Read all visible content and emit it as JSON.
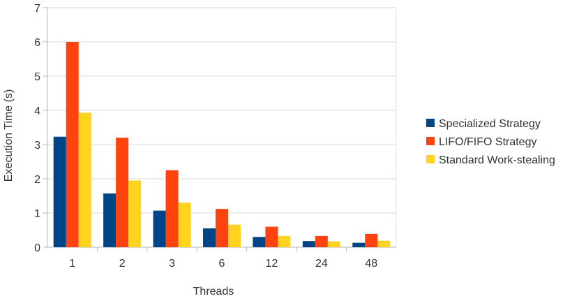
{
  "chart_data": {
    "type": "bar",
    "title": "",
    "xlabel": "Threads",
    "ylabel": "Execution Time (s)",
    "ylim": [
      0,
      7
    ],
    "yticks": [
      0,
      1,
      2,
      3,
      4,
      5,
      6,
      7
    ],
    "grid": true,
    "legend_position": "right",
    "categories": [
      "1",
      "2",
      "3",
      "6",
      "12",
      "24",
      "48"
    ],
    "series": [
      {
        "name": "Specialized Strategy",
        "color": "#004586",
        "values": [
          3.23,
          1.57,
          1.07,
          0.55,
          0.3,
          0.18,
          0.13
        ]
      },
      {
        "name": "LIFO/FIFO Strategy",
        "color": "#ff420e",
        "values": [
          6.0,
          3.2,
          2.25,
          1.12,
          0.6,
          0.33,
          0.39
        ]
      },
      {
        "name": "Standard Work-stealing",
        "color": "#ffd320",
        "values": [
          3.93,
          1.95,
          1.3,
          0.66,
          0.33,
          0.17,
          0.19
        ]
      }
    ]
  }
}
